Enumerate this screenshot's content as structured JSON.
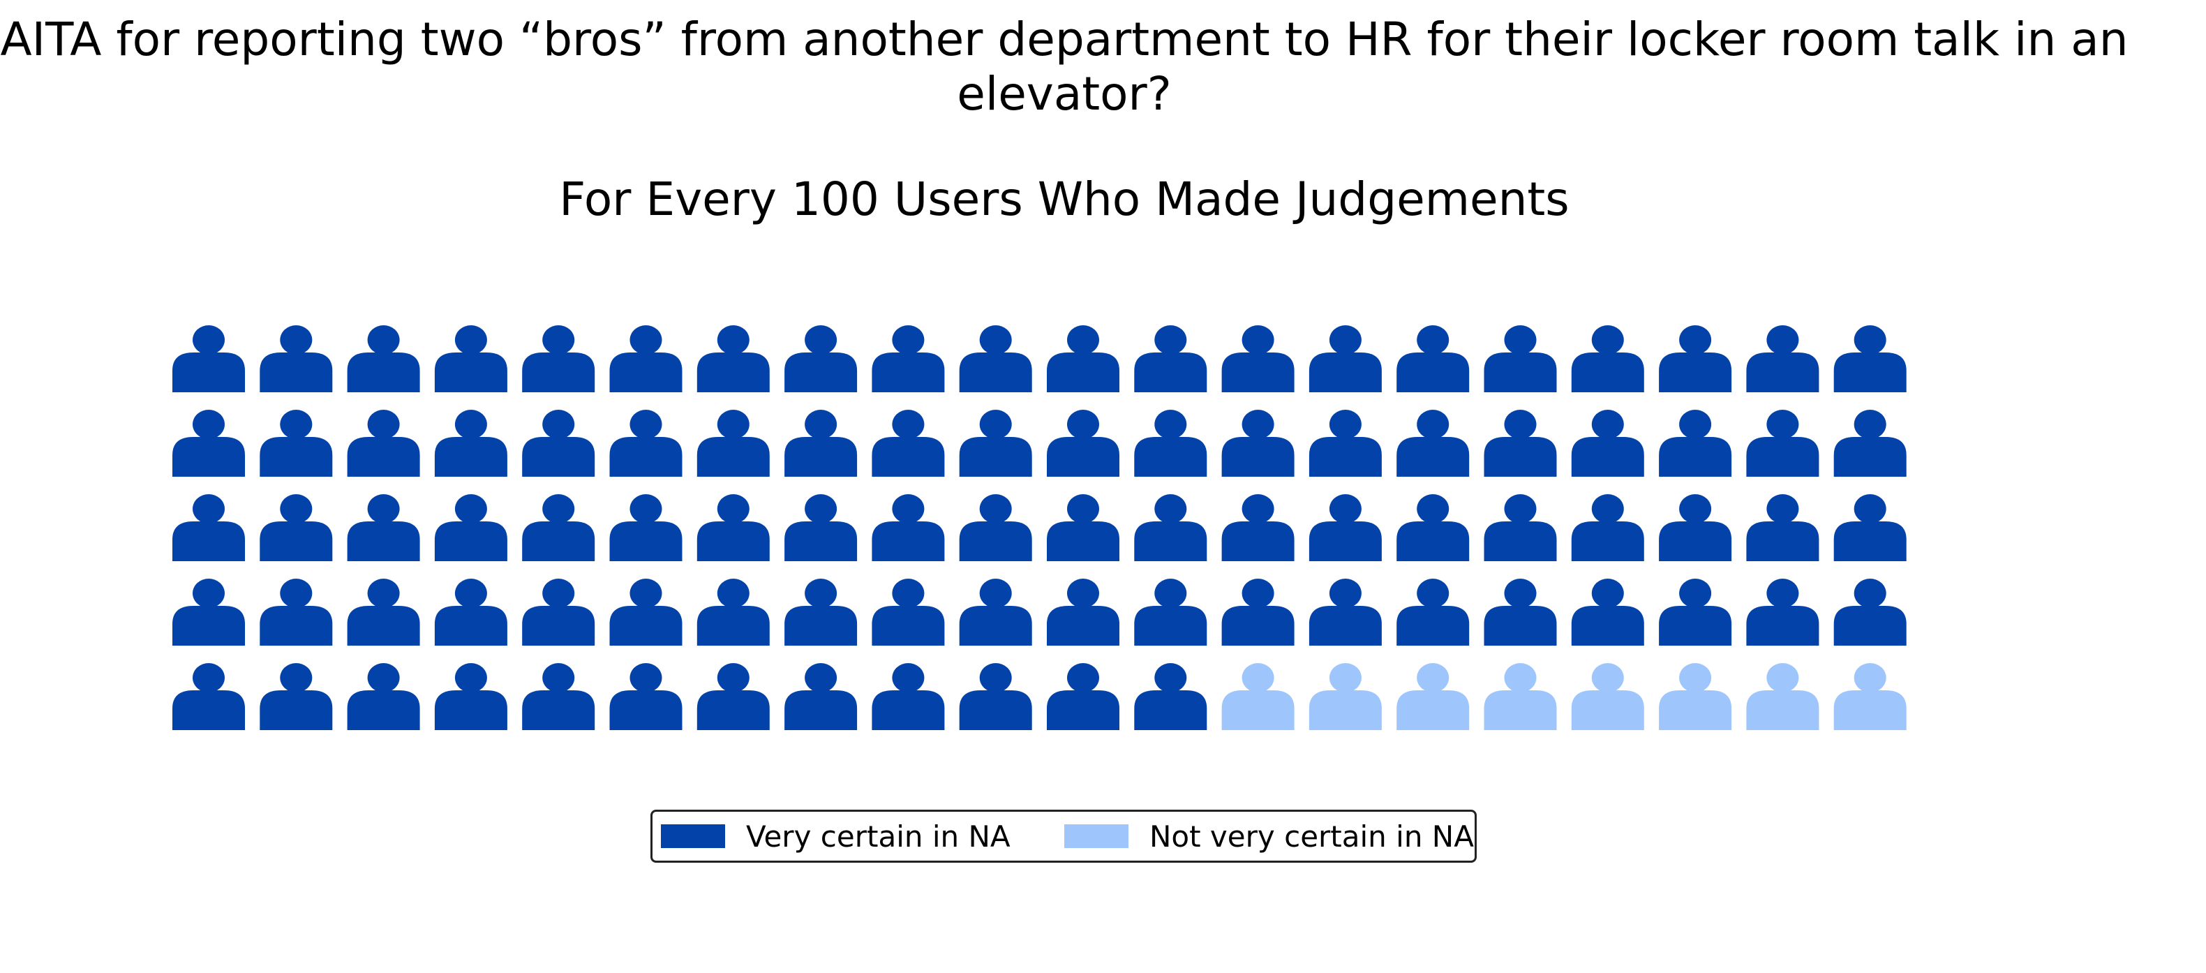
{
  "chart_data": {
    "type": "waffle",
    "title": "AITA for reporting two “bros” from another department to HR for their locker room talk in an elevator?",
    "subtitle": "For Every 100 Users Who Made Judgements",
    "rows": 5,
    "columns": 20,
    "total": 100,
    "icon": "person-icon",
    "series": [
      {
        "name": "Very certain in NA",
        "value": 92,
        "color": "#0343a9"
      },
      {
        "name": "Not very certain in NA",
        "value": 8,
        "color": "#9ec6fc"
      }
    ],
    "legend_position": "bottom-center"
  }
}
